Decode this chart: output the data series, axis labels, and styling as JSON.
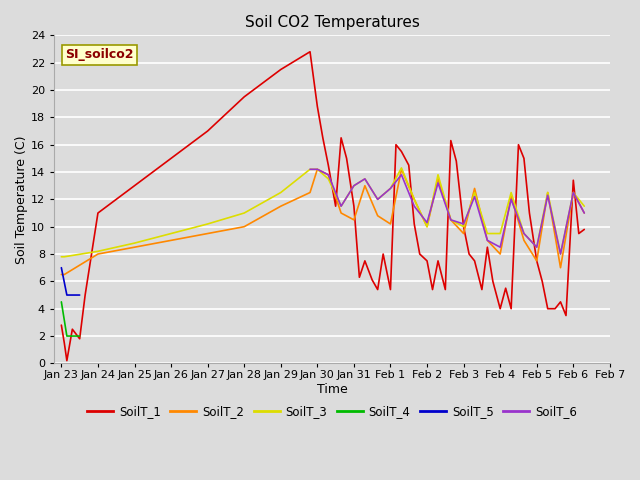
{
  "title": "Soil CO2 Temperatures",
  "xlabel": "Time",
  "ylabel": "Soil Temperature (C)",
  "ylim": [
    0,
    24
  ],
  "plot_bg": "#dcdcdc",
  "fig_bg": "#dcdcdc",
  "annotation_text": "SI_soilco2",
  "annotation_color": "#8b0000",
  "annotation_bg": "#ffffcc",
  "annotation_edge": "#999900",
  "legend": [
    "SoilT_1",
    "SoilT_2",
    "SoilT_3",
    "SoilT_4",
    "SoilT_5",
    "SoilT_6"
  ],
  "line_colors": [
    "#dd0000",
    "#ff8800",
    "#dddd00",
    "#00bb00",
    "#0000cc",
    "#9933cc"
  ],
  "linewidth": 1.2,
  "series": {
    "SoilT_1": {
      "x": [
        0.0,
        0.08,
        0.15,
        0.3,
        0.5,
        0.65,
        1.0,
        2.0,
        3.0,
        4.0,
        5.0,
        6.0,
        6.8,
        7.0,
        7.15,
        7.3,
        7.5,
        7.65,
        7.8,
        8.0,
        8.15,
        8.3,
        8.5,
        8.65,
        8.8,
        9.0,
        9.15,
        9.3,
        9.5,
        9.65,
        9.8,
        10.0,
        10.15,
        10.3,
        10.5,
        10.65,
        10.8,
        11.0,
        11.15,
        11.3,
        11.5,
        11.65,
        11.8,
        12.0,
        12.15,
        12.3,
        12.5,
        12.65,
        12.8,
        13.0,
        13.15,
        13.3,
        13.5,
        13.65,
        13.8,
        14.0,
        14.15,
        14.3
      ],
      "y": [
        2.8,
        1.5,
        0.2,
        2.5,
        1.8,
        5.0,
        11.0,
        13.0,
        15.0,
        17.0,
        19.5,
        21.5,
        22.8,
        18.8,
        16.5,
        14.5,
        11.5,
        16.5,
        15.0,
        11.5,
        6.3,
        7.5,
        6.1,
        5.4,
        8.0,
        5.4,
        16.0,
        15.5,
        14.5,
        10.2,
        8.0,
        7.5,
        5.4,
        7.5,
        5.4,
        16.3,
        14.8,
        10.0,
        8.0,
        7.5,
        5.4,
        8.5,
        6.0,
        4.0,
        5.5,
        4.0,
        16.0,
        15.0,
        11.0,
        7.5,
        6.0,
        4.0,
        4.0,
        4.5,
        3.5,
        13.4,
        9.5,
        9.8
      ]
    },
    "SoilT_2": {
      "x": [
        0.0,
        0.08,
        1.0,
        2.0,
        3.0,
        4.0,
        5.0,
        6.0,
        6.8,
        7.0,
        7.3,
        7.65,
        8.0,
        8.3,
        8.65,
        9.0,
        9.3,
        9.65,
        10.0,
        10.3,
        10.65,
        11.0,
        11.3,
        11.65,
        12.0,
        12.3,
        12.65,
        13.0,
        13.3,
        13.65,
        14.0,
        14.3
      ],
      "y": [
        6.5,
        6.5,
        8.0,
        8.5,
        9.0,
        9.5,
        10.0,
        11.5,
        12.5,
        14.2,
        13.8,
        11.0,
        10.5,
        13.0,
        10.8,
        10.2,
        14.2,
        12.0,
        10.0,
        13.5,
        10.5,
        9.5,
        12.8,
        9.0,
        8.0,
        12.2,
        9.0,
        7.5,
        12.5,
        7.0,
        12.5,
        11.0
      ]
    },
    "SoilT_3": {
      "x": [
        0.0,
        0.08,
        1.0,
        2.0,
        3.0,
        4.0,
        5.0,
        6.0,
        6.8,
        7.0,
        7.3,
        7.65,
        8.0,
        8.3,
        8.65,
        9.0,
        9.3,
        9.65,
        10.0,
        10.3,
        10.65,
        11.0,
        11.3,
        11.65,
        12.0,
        12.3,
        12.65,
        13.0,
        13.3,
        13.65,
        14.0,
        14.3
      ],
      "y": [
        7.8,
        7.8,
        8.2,
        8.8,
        9.5,
        10.2,
        11.0,
        12.5,
        14.2,
        14.2,
        13.5,
        11.5,
        13.0,
        13.5,
        12.0,
        12.8,
        14.3,
        12.0,
        10.0,
        13.8,
        10.5,
        10.0,
        12.5,
        9.5,
        9.5,
        12.5,
        9.5,
        8.5,
        12.5,
        8.0,
        12.5,
        11.5
      ]
    },
    "SoilT_4": {
      "x": [
        0.0,
        0.15,
        0.3,
        0.5
      ],
      "y": [
        4.5,
        2.0,
        2.0,
        2.0
      ]
    },
    "SoilT_5": {
      "x": [
        0.0,
        0.15,
        0.3,
        0.5
      ],
      "y": [
        7.0,
        5.0,
        5.0,
        5.0
      ]
    },
    "SoilT_6": {
      "x": [
        6.8,
        7.0,
        7.3,
        7.65,
        8.0,
        8.3,
        8.65,
        9.0,
        9.3,
        9.65,
        10.0,
        10.3,
        10.65,
        11.0,
        11.3,
        11.65,
        12.0,
        12.3,
        12.65,
        13.0,
        13.3,
        13.65,
        14.0,
        14.3
      ],
      "y": [
        14.2,
        14.2,
        13.8,
        11.5,
        13.0,
        13.5,
        12.0,
        12.8,
        13.8,
        11.5,
        10.3,
        13.2,
        10.5,
        10.2,
        12.2,
        9.0,
        8.5,
        12.0,
        9.5,
        8.5,
        12.3,
        8.0,
        12.5,
        11.0
      ]
    }
  },
  "xticks_labels": [
    "Jan 23",
    "Jan 24",
    "Jan 25",
    "Jan 26",
    "Jan 27",
    "Jan 28",
    "Jan 29",
    "Jan 30",
    "Jan 31",
    "Feb 1",
    "Feb 2",
    "Feb 3",
    "Feb 4",
    "Feb 5",
    "Feb 6",
    "Feb 7"
  ],
  "xticks_pos": [
    0,
    1,
    2,
    3,
    4,
    5,
    6,
    7,
    8,
    9,
    10,
    11,
    12,
    13,
    14,
    15
  ],
  "yticks": [
    0,
    2,
    4,
    6,
    8,
    10,
    12,
    14,
    16,
    18,
    20,
    22,
    24
  ]
}
